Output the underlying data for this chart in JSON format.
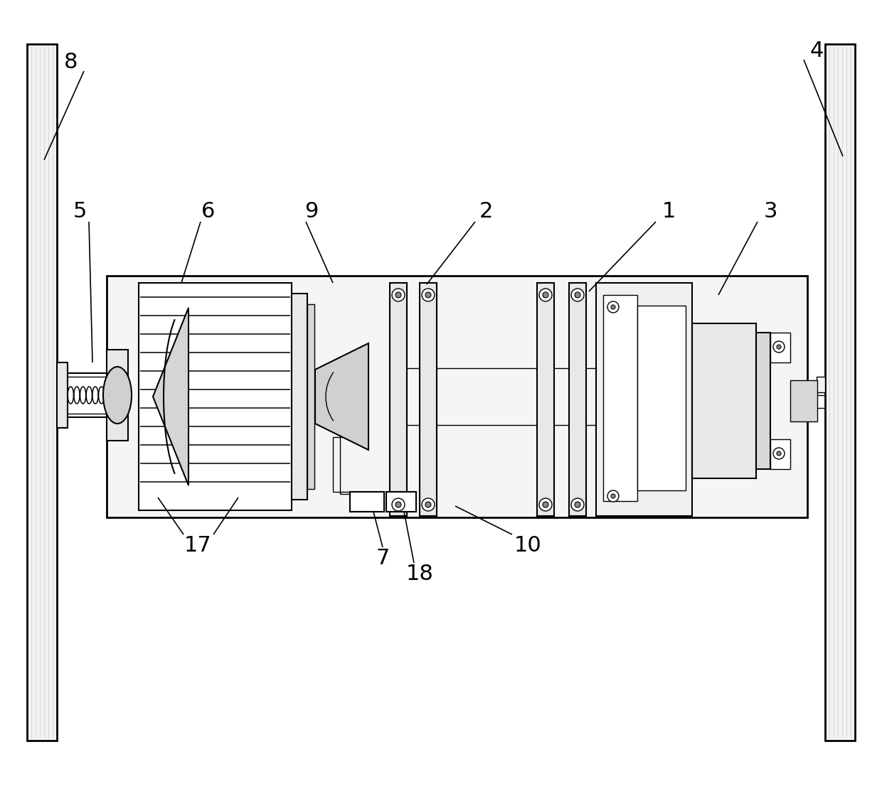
{
  "bg_color": "#ffffff",
  "fig_width": 12.4,
  "fig_height": 11.27,
  "dpi": 100,
  "label_fontsize": 22,
  "lw_wall": 2.0,
  "lw_housing": 2.0,
  "lw_comp": 1.5,
  "lw_detail": 1.0,
  "wall_fc": "#f2f2f2",
  "housing_fc": "#f5f5f5",
  "comp_fc": "#e8e8e8",
  "detail_fc": "#d8d8d8"
}
